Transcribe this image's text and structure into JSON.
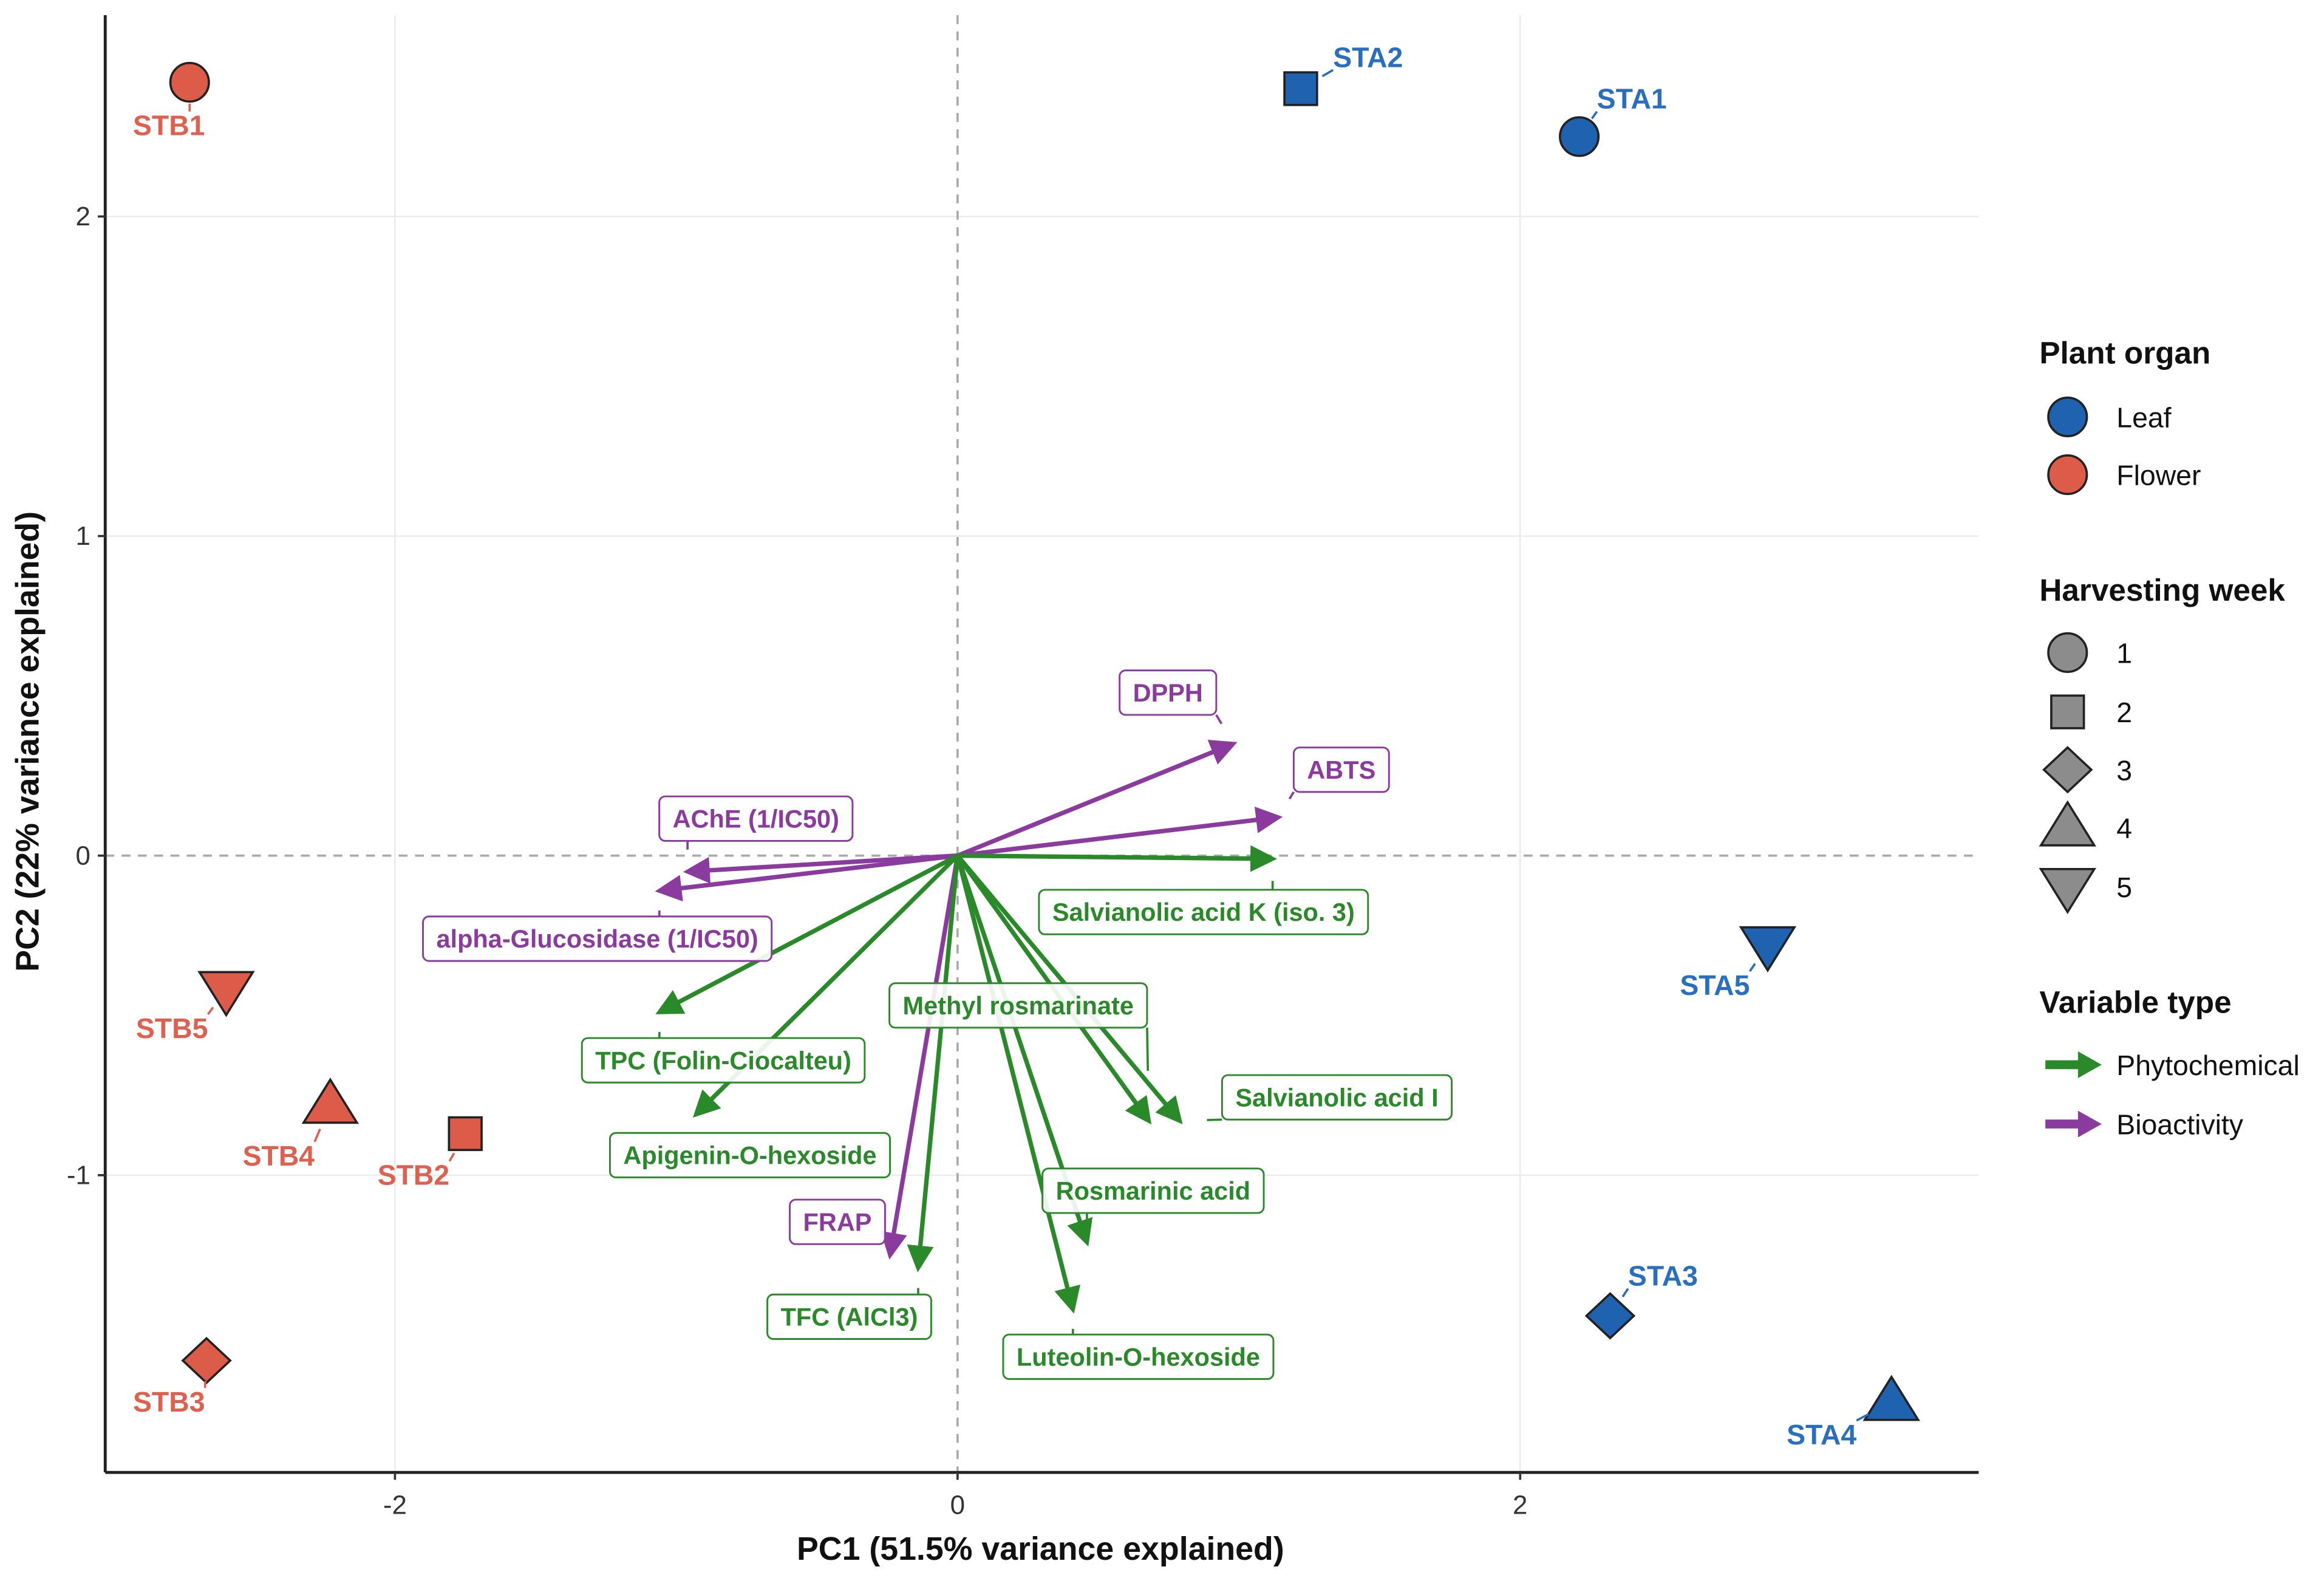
{
  "chart_data": {
    "type": "scatter",
    "subtype": "pca-biplot",
    "xlabel": "PC1 (51.5% variance explained)",
    "ylabel": "PC2 (22% variance explained)",
    "xlim": [
      -3.03,
      3.63
    ],
    "ylim": [
      -1.93,
      2.63
    ],
    "x_ticks": [
      -2,
      0,
      2
    ],
    "y_ticks": [
      -1,
      0,
      1,
      2
    ],
    "grid": true,
    "reference_lines": {
      "x": 0,
      "y": 0,
      "style": "dashed"
    },
    "colors": {
      "Leaf": "#1f63b0",
      "Flower": "#dd5c49",
      "Phytochemical": "#2a8a2a",
      "Bioactivity": "#8b3a9e"
    },
    "points": [
      {
        "label": "STB1",
        "organ": "Flower",
        "week": 1,
        "x": -2.73,
        "y": 2.42
      },
      {
        "label": "STA2",
        "organ": "Leaf",
        "week": 2,
        "x": 1.22,
        "y": 2.4
      },
      {
        "label": "STA1",
        "organ": "Leaf",
        "week": 1,
        "x": 2.21,
        "y": 2.25
      },
      {
        "label": "STB5",
        "organ": "Flower",
        "week": 5,
        "x": -2.6,
        "y": -0.42
      },
      {
        "label": "STB4",
        "organ": "Flower",
        "week": 4,
        "x": -2.23,
        "y": -0.78
      },
      {
        "label": "STB2",
        "organ": "Flower",
        "week": 2,
        "x": -1.75,
        "y": -0.87
      },
      {
        "label": "STB3",
        "organ": "Flower",
        "week": 3,
        "x": -2.67,
        "y": -1.58
      },
      {
        "label": "STA5",
        "organ": "Leaf",
        "week": 5,
        "x": 2.88,
        "y": -0.28
      },
      {
        "label": "STA3",
        "organ": "Leaf",
        "week": 3,
        "x": 2.32,
        "y": -1.44
      },
      {
        "label": "STA4",
        "organ": "Leaf",
        "week": 4,
        "x": 3.32,
        "y": -1.71
      }
    ],
    "loadings": [
      {
        "label": "DPPH",
        "type": "Bioactivity",
        "x": 0.98,
        "y": 0.35
      },
      {
        "label": "ABTS",
        "type": "Bioactivity",
        "x": 1.14,
        "y": 0.12
      },
      {
        "label": "AChE (1/IC50)",
        "type": "Bioactivity",
        "x": -0.96,
        "y": -0.05
      },
      {
        "label": "alpha-Glucosidase (1/IC50)",
        "type": "Bioactivity",
        "x": -1.06,
        "y": -0.11
      },
      {
        "label": "Salvianolic acid K (iso. 3)",
        "type": "Phytochemical",
        "x": 1.12,
        "y": -0.01
      },
      {
        "label": "Methyl rosmarinate",
        "type": "Phytochemical",
        "x": 0.68,
        "y": -0.83
      },
      {
        "label": "TPC (Folin-Ciocalteu)",
        "type": "Phytochemical",
        "x": -1.06,
        "y": -0.49
      },
      {
        "label": "Salvianolic acid I",
        "type": "Phytochemical",
        "x": 0.79,
        "y": -0.83
      },
      {
        "label": "Apigenin-O-hexoside",
        "type": "Phytochemical",
        "x": -0.93,
        "y": -0.81
      },
      {
        "label": "Rosmarinic acid",
        "type": "Phytochemical",
        "x": 0.46,
        "y": -1.21
      },
      {
        "label": "FRAP",
        "type": "Bioactivity",
        "x": -0.24,
        "y": -1.25
      },
      {
        "label": "TFC (AlCl3)",
        "type": "Phytochemical",
        "x": -0.14,
        "y": -1.29
      },
      {
        "label": "Luteolin-O-hexoside",
        "type": "Phytochemical",
        "x": 0.41,
        "y": -1.42
      }
    ],
    "legend": {
      "placement": "right",
      "groups": [
        {
          "title": "Plant organ",
          "items": [
            "Leaf",
            "Flower"
          ]
        },
        {
          "title": "Harvesting week",
          "items": [
            "1",
            "2",
            "3",
            "4",
            "5"
          ]
        },
        {
          "title": "Variable type",
          "items": [
            "Phytochemical",
            "Bioactivity"
          ]
        }
      ]
    }
  }
}
